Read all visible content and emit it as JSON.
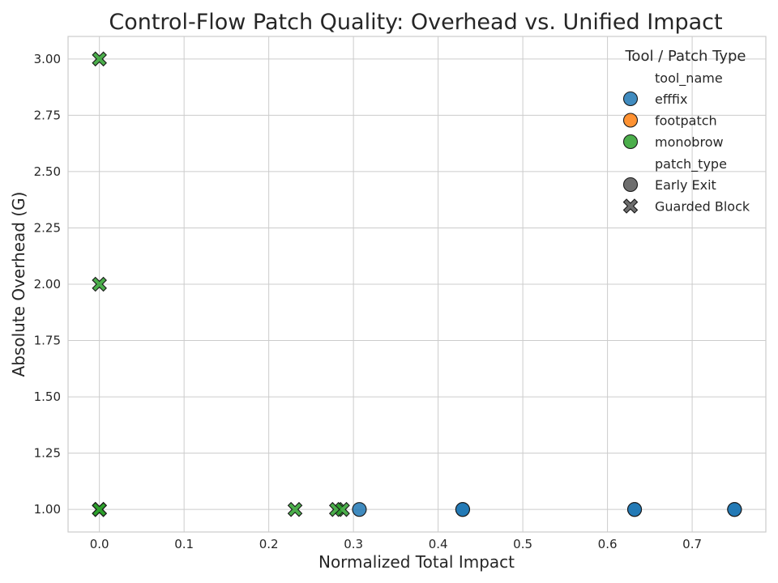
{
  "chart_data": {
    "type": "scatter",
    "title": "Control-Flow Patch Quality: Overhead vs. Unified Impact",
    "xlabel": "Normalized Total Impact",
    "ylabel": "Absolute Overhead (G)",
    "xlim": [
      -0.037,
      0.787
    ],
    "ylim": [
      0.9,
      3.1
    ],
    "x_ticks": [
      0.0,
      0.1,
      0.2,
      0.3,
      0.4,
      0.5,
      0.6,
      0.7
    ],
    "x_tick_labels": [
      "0.0",
      "0.1",
      "0.2",
      "0.3",
      "0.4",
      "0.5",
      "0.6",
      "0.7"
    ],
    "y_ticks": [
      1.0,
      1.25,
      1.5,
      1.75,
      2.0,
      2.25,
      2.5,
      2.75,
      3.0
    ],
    "y_tick_labels": [
      "1.00",
      "1.25",
      "1.50",
      "1.75",
      "2.00",
      "2.25",
      "2.50",
      "2.75",
      "3.00"
    ],
    "grid": true,
    "legend": {
      "placement": "top-right",
      "title": "Tool / Patch Type",
      "hue_header": "tool_name",
      "style_header": "patch_type",
      "tools": [
        {
          "name": "efffix",
          "color": "#1f77b4"
        },
        {
          "name": "footpatch",
          "color": "#ff7f0e"
        },
        {
          "name": "monobrow",
          "color": "#2ca02c"
        }
      ],
      "patch_types": [
        {
          "name": "Early Exit",
          "marker": "circle"
        },
        {
          "name": "Guarded Block",
          "marker": "x"
        }
      ]
    },
    "series": [
      {
        "name": "efffix",
        "color": "#1f77b4",
        "points": [
          {
            "x": 0.307,
            "y": 1.0,
            "patch_type": "Early Exit"
          },
          {
            "x": 0.429,
            "y": 1.0,
            "patch_type": "Early Exit"
          },
          {
            "x": 0.429,
            "y": 1.0,
            "patch_type": "Early Exit"
          },
          {
            "x": 0.632,
            "y": 1.0,
            "patch_type": "Early Exit"
          },
          {
            "x": 0.632,
            "y": 1.0,
            "patch_type": "Early Exit"
          },
          {
            "x": 0.75,
            "y": 1.0,
            "patch_type": "Early Exit"
          },
          {
            "x": 0.75,
            "y": 1.0,
            "patch_type": "Early Exit"
          }
        ]
      },
      {
        "name": "footpatch",
        "color": "#ff7f0e",
        "points": [
          {
            "x": 0.0,
            "y": 1.0,
            "patch_type": "Guarded Block"
          }
        ]
      },
      {
        "name": "monobrow",
        "color": "#2ca02c",
        "points": [
          {
            "x": 0.0,
            "y": 3.0,
            "patch_type": "Guarded Block"
          },
          {
            "x": 0.0,
            "y": 2.0,
            "patch_type": "Guarded Block"
          },
          {
            "x": 0.0,
            "y": 1.0,
            "patch_type": "Guarded Block"
          },
          {
            "x": 0.0,
            "y": 1.0,
            "patch_type": "Guarded Block"
          },
          {
            "x": 0.0,
            "y": 1.0,
            "patch_type": "Guarded Block"
          },
          {
            "x": 0.231,
            "y": 1.0,
            "patch_type": "Guarded Block"
          },
          {
            "x": 0.28,
            "y": 1.0,
            "patch_type": "Guarded Block"
          },
          {
            "x": 0.287,
            "y": 1.0,
            "patch_type": "Guarded Block"
          }
        ]
      }
    ]
  }
}
